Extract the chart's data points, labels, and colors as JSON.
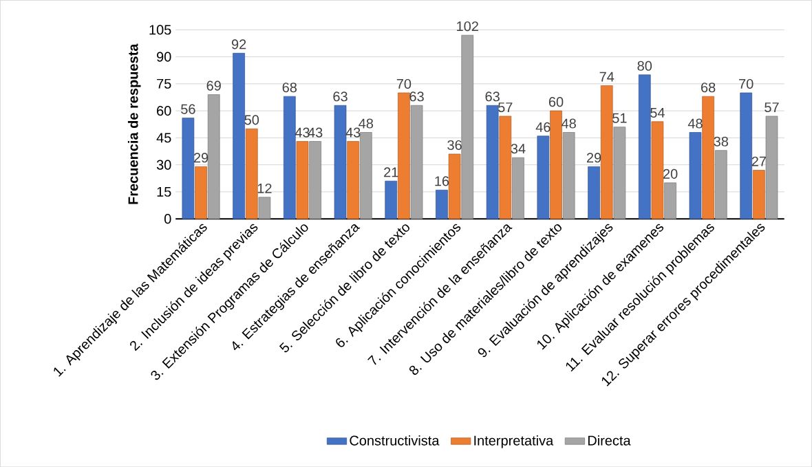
{
  "chart_data": {
    "type": "bar",
    "ylabel": "Frecuencia de respuesta",
    "categories": [
      "1. Aprendizaje de las Matemáticas",
      "2. Inclusión de ideas previas",
      "3. Extensión Programas de Cálculo",
      "4. Estrategias de enseñanza",
      "5. Selección de libro de texto",
      "6. Aplicación conocimientos",
      "7. Intervención de la enseñanza",
      "8. Uso de materiales/libro de texto",
      "9. Evaluación de aprendizajes",
      "10. Aplicación de examenes",
      "11. Evaluar resolución problemas",
      "12. Superar errores procedimentales"
    ],
    "series": [
      {
        "name": "Constructivista",
        "color": "#4472c4",
        "values": [
          56,
          92,
          68,
          63,
          21,
          16,
          63,
          46,
          29,
          80,
          48,
          70
        ]
      },
      {
        "name": "Interpretativa",
        "color": "#ed7d31",
        "values": [
          29,
          50,
          43,
          43,
          70,
          36,
          57,
          60,
          74,
          54,
          68,
          27
        ]
      },
      {
        "name": "Directa",
        "color": "#a5a5a5",
        "values": [
          69,
          12,
          43,
          48,
          63,
          102,
          34,
          48,
          51,
          20,
          38,
          57
        ]
      }
    ],
    "ylim": [
      0,
      105
    ],
    "yticks": [
      0,
      15,
      30,
      45,
      60,
      75,
      90,
      105
    ],
    "grid": "y",
    "legend": "bottom",
    "data_labels": true
  }
}
